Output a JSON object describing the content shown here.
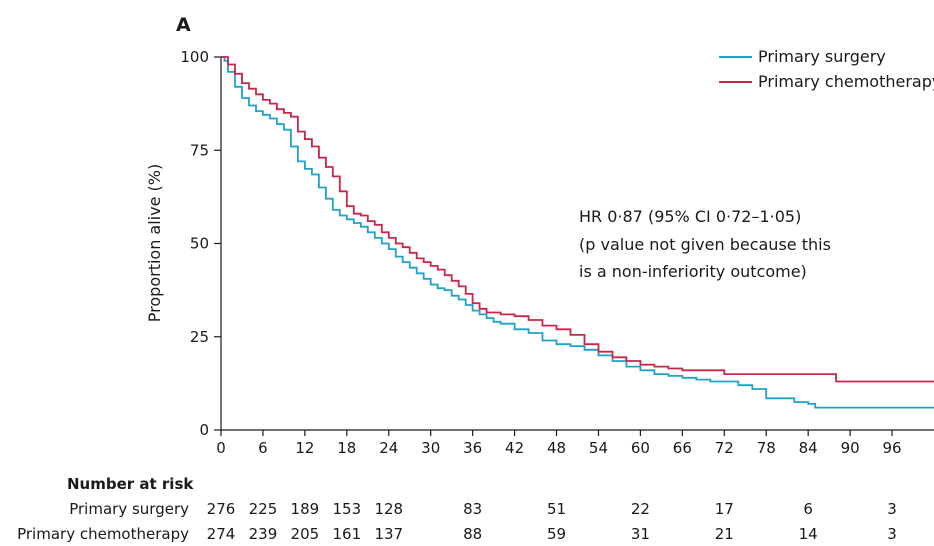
{
  "chart_data": {
    "type": "line",
    "panel_label": "A",
    "ylabel": "Proportion alive (%)",
    "xlabel": "",
    "xlim": [
      0,
      102
    ],
    "ylim": [
      0,
      100
    ],
    "x_ticks": [
      0,
      6,
      12,
      18,
      24,
      30,
      36,
      42,
      48,
      54,
      60,
      66,
      72,
      78,
      84,
      90,
      96
    ],
    "y_ticks": [
      0,
      25,
      50,
      75,
      100
    ],
    "grid": false,
    "legend_position": "top-right",
    "annotation": [
      "HR 0·87 (95% CI 0·72–1·05)",
      "(p value not given because this",
      "is a non-inferiority outcome)"
    ],
    "series": [
      {
        "name": "Primary surgery",
        "color": "#1ea3c8",
        "points": [
          [
            0,
            100
          ],
          [
            0.5,
            99
          ],
          [
            1,
            96
          ],
          [
            2,
            92
          ],
          [
            3,
            89
          ],
          [
            4,
            87
          ],
          [
            5,
            85.5
          ],
          [
            6,
            84.5
          ],
          [
            7,
            83.5
          ],
          [
            8,
            82
          ],
          [
            9,
            80.5
          ],
          [
            10,
            76
          ],
          [
            11,
            72
          ],
          [
            12,
            70
          ],
          [
            13,
            68.5
          ],
          [
            14,
            65
          ],
          [
            15,
            62
          ],
          [
            16,
            59
          ],
          [
            17,
            57.5
          ],
          [
            18,
            56.5
          ],
          [
            19,
            55.5
          ],
          [
            20,
            54.5
          ],
          [
            21,
            53
          ],
          [
            22,
            51.5
          ],
          [
            23,
            50
          ],
          [
            24,
            48.5
          ],
          [
            25,
            46.5
          ],
          [
            26,
            45
          ],
          [
            27,
            43.5
          ],
          [
            28,
            42
          ],
          [
            29,
            40.5
          ],
          [
            30,
            39
          ],
          [
            31,
            38
          ],
          [
            32,
            37.5
          ],
          [
            33,
            36
          ],
          [
            34,
            35
          ],
          [
            35,
            33.5
          ],
          [
            36,
            32
          ],
          [
            37,
            31
          ],
          [
            38,
            30
          ],
          [
            39,
            29
          ],
          [
            40,
            28.5
          ],
          [
            42,
            27
          ],
          [
            44,
            26
          ],
          [
            46,
            24
          ],
          [
            48,
            23
          ],
          [
            50,
            22.5
          ],
          [
            52,
            21.5
          ],
          [
            54,
            20
          ],
          [
            56,
            18.5
          ],
          [
            58,
            17
          ],
          [
            60,
            16
          ],
          [
            62,
            15
          ],
          [
            64,
            14.5
          ],
          [
            66,
            14
          ],
          [
            68,
            13.5
          ],
          [
            70,
            13
          ],
          [
            72,
            13
          ],
          [
            74,
            12
          ],
          [
            76,
            11
          ],
          [
            78,
            8.5
          ],
          [
            80,
            8.5
          ],
          [
            82,
            7.5
          ],
          [
            84,
            7
          ],
          [
            85,
            6
          ],
          [
            90,
            6
          ],
          [
            96,
            6
          ],
          [
            102,
            6
          ]
        ]
      },
      {
        "name": "Primary chemotherapy",
        "color": "#c8264a",
        "points": [
          [
            0,
            100
          ],
          [
            1,
            98
          ],
          [
            2,
            95.5
          ],
          [
            3,
            93
          ],
          [
            4,
            91.5
          ],
          [
            5,
            90
          ],
          [
            6,
            88.5
          ],
          [
            7,
            87.5
          ],
          [
            8,
            86
          ],
          [
            9,
            85
          ],
          [
            10,
            84
          ],
          [
            11,
            80
          ],
          [
            12,
            78
          ],
          [
            13,
            76
          ],
          [
            14,
            73
          ],
          [
            15,
            70.5
          ],
          [
            16,
            68
          ],
          [
            17,
            64
          ],
          [
            18,
            60
          ],
          [
            19,
            58
          ],
          [
            20,
            57.5
          ],
          [
            21,
            56
          ],
          [
            22,
            55
          ],
          [
            23,
            53
          ],
          [
            24,
            51.5
          ],
          [
            25,
            50
          ],
          [
            26,
            49
          ],
          [
            27,
            47.5
          ],
          [
            28,
            46
          ],
          [
            29,
            45
          ],
          [
            30,
            44
          ],
          [
            31,
            43
          ],
          [
            32,
            41.5
          ],
          [
            33,
            40
          ],
          [
            34,
            38.5
          ],
          [
            35,
            36.5
          ],
          [
            36,
            34
          ],
          [
            37,
            32.5
          ],
          [
            38,
            31.5
          ],
          [
            40,
            31
          ],
          [
            42,
            30.5
          ],
          [
            44,
            29.5
          ],
          [
            46,
            28
          ],
          [
            48,
            27
          ],
          [
            50,
            25.5
          ],
          [
            52,
            23
          ],
          [
            54,
            21
          ],
          [
            56,
            19.5
          ],
          [
            58,
            18.5
          ],
          [
            60,
            17.5
          ],
          [
            62,
            17
          ],
          [
            64,
            16.5
          ],
          [
            66,
            16
          ],
          [
            70,
            16
          ],
          [
            72,
            15
          ],
          [
            80,
            15
          ],
          [
            86,
            15
          ],
          [
            88,
            13
          ],
          [
            96,
            13
          ],
          [
            102,
            13
          ]
        ]
      }
    ],
    "at_risk": {
      "title": "Number at risk",
      "x": [
        0,
        6,
        12,
        18,
        24,
        36,
        48,
        60,
        72,
        84,
        96
      ],
      "rows": [
        {
          "label": "Primary surgery",
          "values": [
            "276",
            "225",
            "189",
            "153",
            "128",
            "83",
            "51",
            "22",
            "17",
            "6",
            "3"
          ]
        },
        {
          "label": "Primary chemotherapy",
          "values": [
            "274",
            "239",
            "205",
            "161",
            "137",
            "88",
            "59",
            "31",
            "21",
            "14",
            "3"
          ]
        }
      ]
    }
  }
}
